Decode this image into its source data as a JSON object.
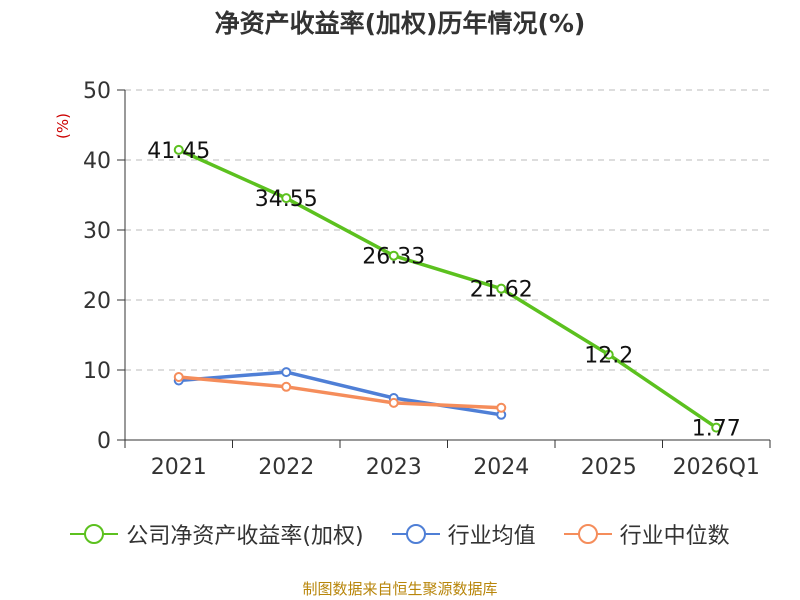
{
  "title": "净资产收益率(加权)历年情况(%)",
  "source": "制图数据来自恒生聚源数据库",
  "colors": {
    "company": "#5cc11f",
    "industry_avg": "#4f7fd6",
    "industry_median": "#f58d5b",
    "unit": "#cc0000",
    "source": "#b8860b",
    "grid": "#bbbbbb",
    "axis": "#333333"
  },
  "chart_data": {
    "type": "line",
    "title": "净资产收益率(加权)历年情况(%)",
    "ylabel": "(%)",
    "xlabel": "",
    "categories": [
      "2021",
      "2022",
      "2023",
      "2024",
      "2025",
      "2026Q1"
    ],
    "ylim": [
      0,
      50
    ],
    "yticks": [
      0,
      10,
      20,
      30,
      40,
      50
    ],
    "grid": true,
    "legend_position": "bottom",
    "series": [
      {
        "name": "公司净资产收益率(加权)",
        "key": "company",
        "values": [
          41.45,
          34.55,
          26.33,
          21.62,
          12.2,
          1.77
        ],
        "labels": [
          "41.45",
          "34.55",
          "26.33",
          "21.62",
          "12.2",
          "1.77"
        ]
      },
      {
        "name": "行业均值",
        "key": "industry_avg",
        "values": [
          8.5,
          9.7,
          6.0,
          3.6,
          null,
          null
        ]
      },
      {
        "name": "行业中位数",
        "key": "industry_median",
        "values": [
          9.0,
          7.6,
          5.3,
          4.6,
          null,
          null
        ]
      }
    ]
  }
}
